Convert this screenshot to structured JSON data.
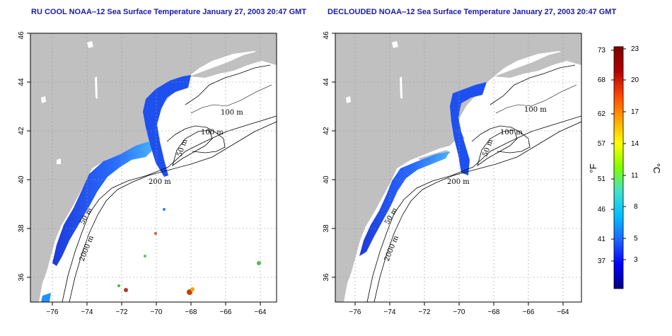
{
  "panels": [
    {
      "title": "RU COOL NOAA‒12 Sea Surface Temperature January 27, 2003 20:47 GMT",
      "contour_labels": [
        "100 m",
        "100 m",
        "50 m",
        "200 m",
        "50 m",
        "2000 m"
      ]
    },
    {
      "title": "DECLOUDED NOAA‒12 Sea Surface Temperature January 27, 2003 20:47 GMT",
      "contour_labels": [
        "100 m",
        "100 m",
        "50 m",
        "200 m",
        "50 m",
        "2000 m"
      ]
    }
  ],
  "axes": {
    "x_ticks": [
      "−76",
      "−74",
      "−72",
      "−70",
      "−68",
      "−66",
      "−64"
    ],
    "y_ticks": [
      "36",
      "38",
      "40",
      "42",
      "44",
      "46"
    ],
    "lon_range": [
      -77,
      -63
    ],
    "lat_range": [
      35,
      46
    ]
  },
  "colorbar": {
    "fahrenheit_ticks": [
      "73",
      "68",
      "62",
      "57",
      "51",
      "46",
      "41",
      "37"
    ],
    "celsius_ticks": [
      "23",
      "20",
      "17",
      "14",
      "11",
      "8",
      "5",
      "3"
    ],
    "fahrenheit_label": "°F",
    "celsius_label": "°C",
    "celsius_range": [
      1,
      23
    ],
    "gradient_colors": [
      "#000080",
      "#0000ff",
      "#1e64ff",
      "#00bfff",
      "#40e0d0",
      "#7fff00",
      "#ffff00",
      "#ffa500",
      "#ff4500",
      "#b00000",
      "#800000"
    ]
  },
  "colors": {
    "land": "#c0c0c0",
    "ocean": "#ffffff",
    "title": "#1a1aa8",
    "sst_cold": "#2040e0",
    "sst_mid": "#40a0ff"
  }
}
